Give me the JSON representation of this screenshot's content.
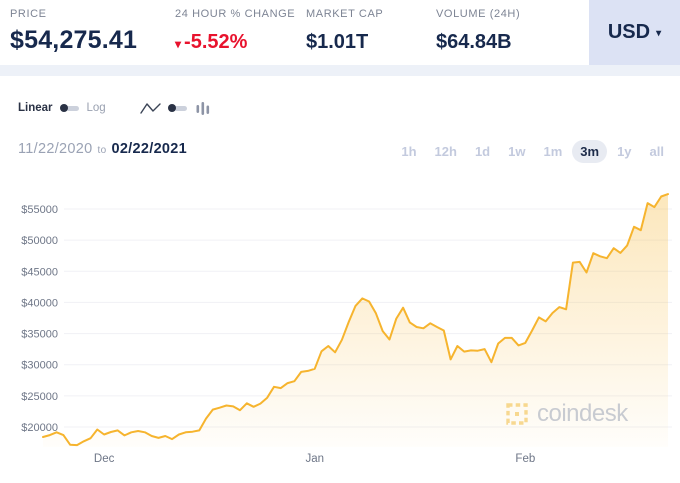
{
  "header": {
    "price": {
      "label": "PRICE",
      "value": "$54,275.41"
    },
    "change": {
      "label": "24 HOUR % CHANGE",
      "arrow": "▾",
      "value": "-5.52%"
    },
    "market_cap": {
      "label": "MARKET CAP",
      "value": "$1.01T"
    },
    "volume": {
      "label": "VOLUME (24H)",
      "value": "$64.84B"
    },
    "currency": {
      "value": "USD",
      "caret": "▾"
    }
  },
  "controls": {
    "scale": {
      "linear_label": "Linear",
      "log_label": "Log",
      "selected": "Linear"
    },
    "chart_type": {
      "selected": "line",
      "options": [
        "line",
        "bars"
      ]
    }
  },
  "range": {
    "start": "11/22/2020",
    "to_label": "to",
    "end": "02/22/2021",
    "buttons": [
      {
        "label": "1h",
        "active": false
      },
      {
        "label": "12h",
        "active": false
      },
      {
        "label": "1d",
        "active": false
      },
      {
        "label": "1w",
        "active": false
      },
      {
        "label": "1m",
        "active": false
      },
      {
        "label": "3m",
        "active": true
      },
      {
        "label": "1y",
        "active": false
      },
      {
        "label": "all",
        "active": false
      }
    ]
  },
  "watermark": {
    "text": "coindesk"
  },
  "colors": {
    "navy": "#17294d",
    "red": "#e8122d",
    "line": "#f6b42e",
    "currency_bg": "#dce2f4",
    "grid": "#f0f1f5",
    "axis_text": "#6e7687"
  },
  "chart_data": {
    "type": "line",
    "title": "Bitcoin price in USD, 11/22/2020 to 02/22/2021",
    "unit": "USD",
    "frequency": "daily",
    "x_start_date": "11/22/2020",
    "x_end_date": "02/22/2021",
    "x_ticks": [
      "Dec",
      "Jan",
      "Feb"
    ],
    "x_tick_day_offsets": [
      9,
      40,
      71
    ],
    "total_days": 92,
    "y_ticks": [
      "$55000",
      "$50000",
      "$45000",
      "$40000",
      "$35000",
      "$30000",
      "$25000",
      "$20000"
    ],
    "ylim": [
      16500,
      58000
    ],
    "grid": true,
    "legend": "none",
    "values": [
      18400,
      18700,
      19150,
      18700,
      17150,
      17100,
      17700,
      18200,
      19600,
      18800,
      19200,
      19450,
      18650,
      19150,
      19350,
      19150,
      18550,
      18250,
      18550,
      18050,
      18800,
      19150,
      19250,
      19450,
      21350,
      22800,
      23100,
      23450,
      23300,
      22700,
      23800,
      23250,
      23750,
      24700,
      26450,
      26250,
      27050,
      27350,
      28850,
      29000,
      29350,
      32150,
      33000,
      32000,
      34000,
      36850,
      39450,
      40650,
      40150,
      38250,
      35400,
      34050,
      37400,
      39150,
      36800,
      36050,
      35850,
      36650,
      36050,
      35500,
      30850,
      33000,
      32100,
      32300,
      32250,
      32500,
      30400,
      33400,
      34300,
      34300,
      33100,
      33500,
      35500,
      37600,
      36950,
      38300,
      39250,
      38900,
      46400,
      46500,
      44800,
      47900,
      47400,
      47100,
      48700,
      47950,
      49150,
      52150,
      51600,
      55950,
      55300,
      57000,
      57400
    ]
  }
}
